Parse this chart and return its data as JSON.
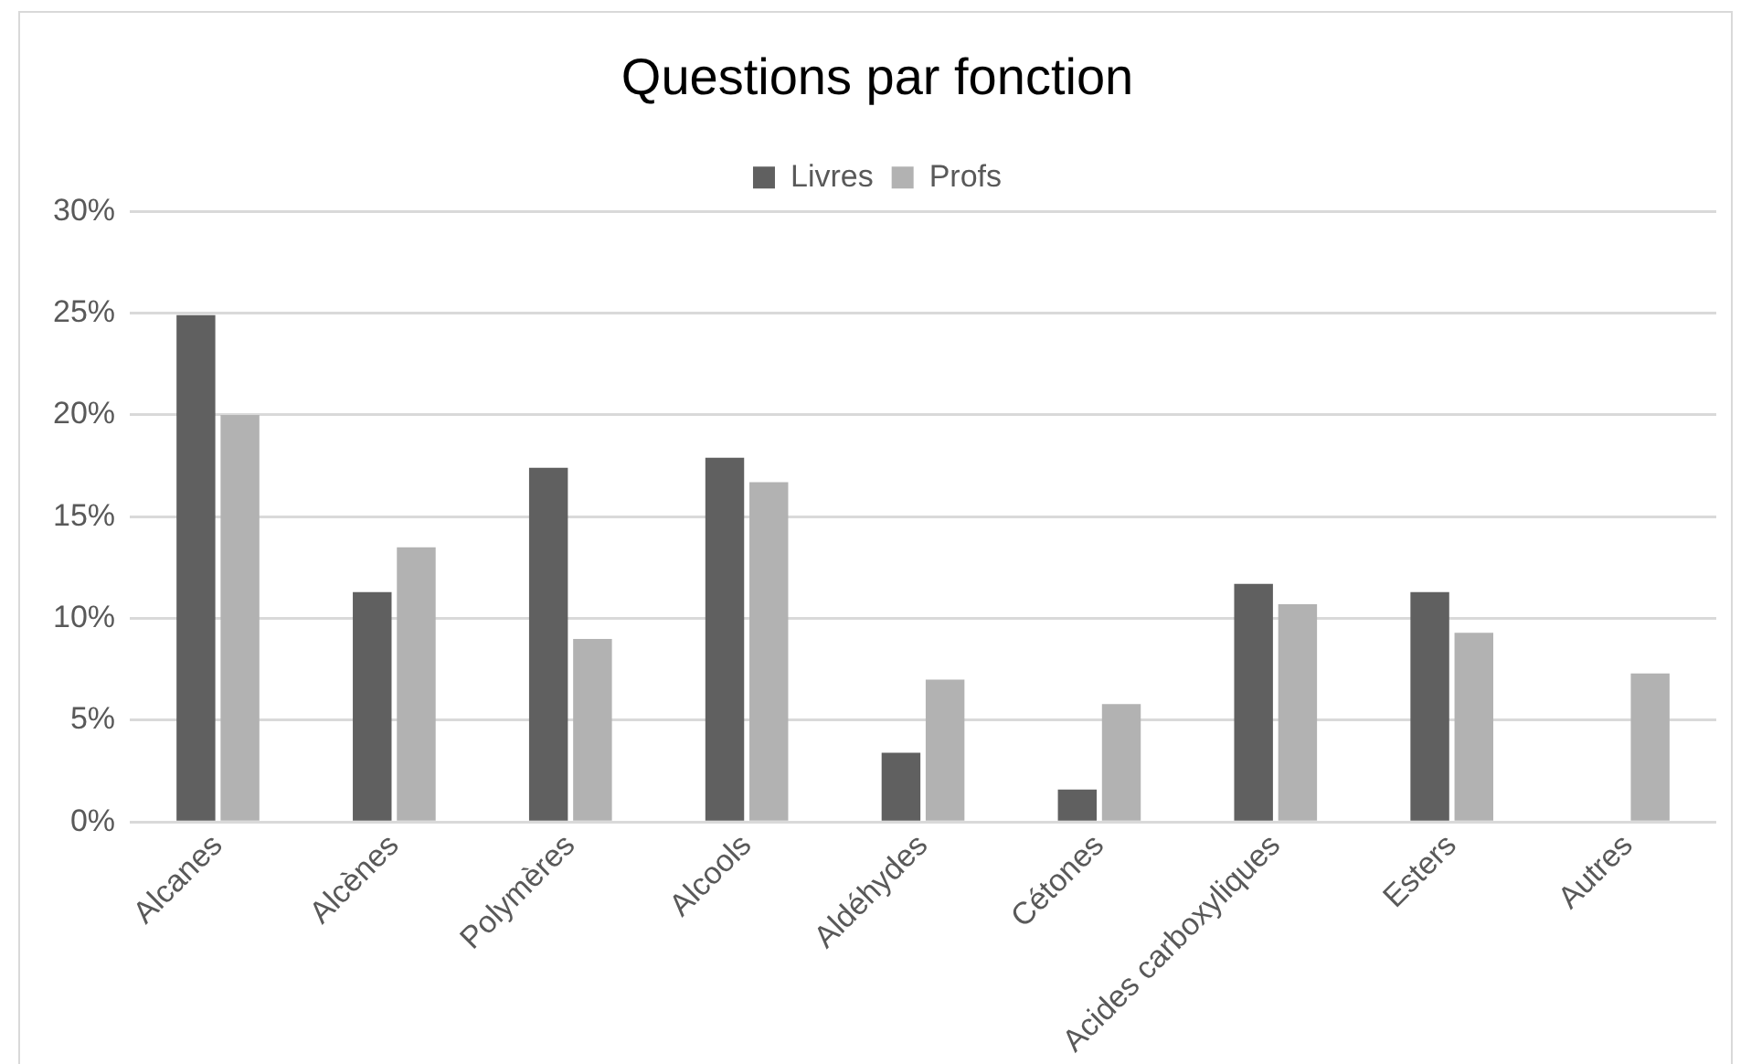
{
  "chart_data": {
    "type": "bar",
    "title": "Questions par fonction",
    "categories": [
      "Alcanes",
      "Alcènes",
      "Polymères",
      "Alcools",
      "Aldéhydes",
      "Cétones",
      "Acides carboxyliques",
      "Esters",
      "Autres"
    ],
    "series": [
      {
        "name": "Livres",
        "color": "#606060",
        "values": [
          24.9,
          11.3,
          17.4,
          17.9,
          3.4,
          1.6,
          11.7,
          11.3,
          0
        ]
      },
      {
        "name": "Profs",
        "color": "#b2b2b2",
        "values": [
          20.0,
          13.5,
          9.0,
          16.7,
          7.0,
          5.8,
          10.7,
          9.3,
          7.3
        ]
      }
    ],
    "ylim": [
      0,
      30
    ],
    "yticks": [
      {
        "value": 0,
        "label": "0%"
      },
      {
        "value": 5,
        "label": "5%"
      },
      {
        "value": 10,
        "label": "10%"
      },
      {
        "value": 15,
        "label": "15%"
      },
      {
        "value": 20,
        "label": "20%"
      },
      {
        "value": 25,
        "label": "25%"
      },
      {
        "value": 30,
        "label": "30%"
      }
    ],
    "grid": "y",
    "legend": "top"
  }
}
